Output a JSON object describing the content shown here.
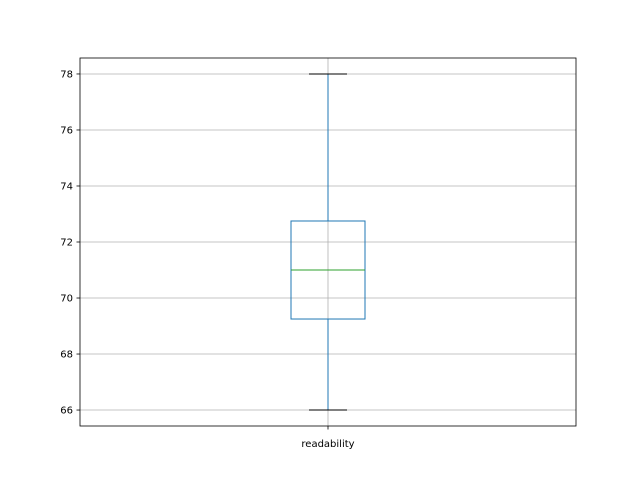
{
  "chart_data": {
    "type": "box",
    "title": "",
    "xlabel": "",
    "ylabel": "",
    "categories": [
      "readability"
    ],
    "boxes": [
      {
        "label": "readability",
        "whisker_low": 66,
        "q1": 69.25,
        "median": 71,
        "q3": 72.75,
        "whisker_high": 78
      }
    ],
    "ylim": [
      65.43,
      78.57
    ],
    "yticks": [
      66,
      68,
      70,
      72,
      74,
      76,
      78
    ],
    "grid": true,
    "colors": {
      "box": "#1f77b4",
      "median": "#2ca02c",
      "whisker": "#1f77b4",
      "cap": "#000000",
      "grid": "#b0b0b0"
    }
  }
}
